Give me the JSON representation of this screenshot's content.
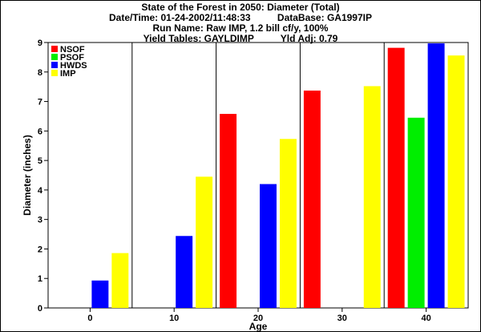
{
  "chart_data": {
    "type": "bar",
    "title": "State of the Forest in 2050: Diameter (Total)",
    "subtitle_lines": [
      "Date/Time: 01-24-2002/11:48:33          DataBase: GA1997IP",
      "Run Name: Raw IMP, 1.2 bill cf/y, 100%",
      "Yield Tables: GAYLDIMP          Yld Adj: 0.79"
    ],
    "xlabel": "Age",
    "ylabel": "Diameter (inches)",
    "ylim": [
      0,
      9
    ],
    "yticks": [
      "0",
      "1",
      "2",
      "3",
      "4",
      "5",
      "6",
      "7",
      "8",
      "9"
    ],
    "categories": [
      "0",
      "10",
      "20",
      "30",
      "40"
    ],
    "legend_position": "top-left",
    "grid": false,
    "series": [
      {
        "name": "NSOF",
        "color": "#ff0000",
        "values": [
          null,
          null,
          6.58,
          7.37,
          8.82
        ]
      },
      {
        "name": "PSOF",
        "color": "#00ee00",
        "values": [
          null,
          null,
          null,
          null,
          6.45
        ]
      },
      {
        "name": "HWDS",
        "color": "#0000ff",
        "values": [
          0.93,
          2.44,
          4.2,
          null,
          8.97
        ]
      },
      {
        "name": "IMP",
        "color": "#ffff00",
        "values": [
          1.86,
          4.45,
          5.73,
          7.52,
          8.56
        ]
      }
    ]
  }
}
